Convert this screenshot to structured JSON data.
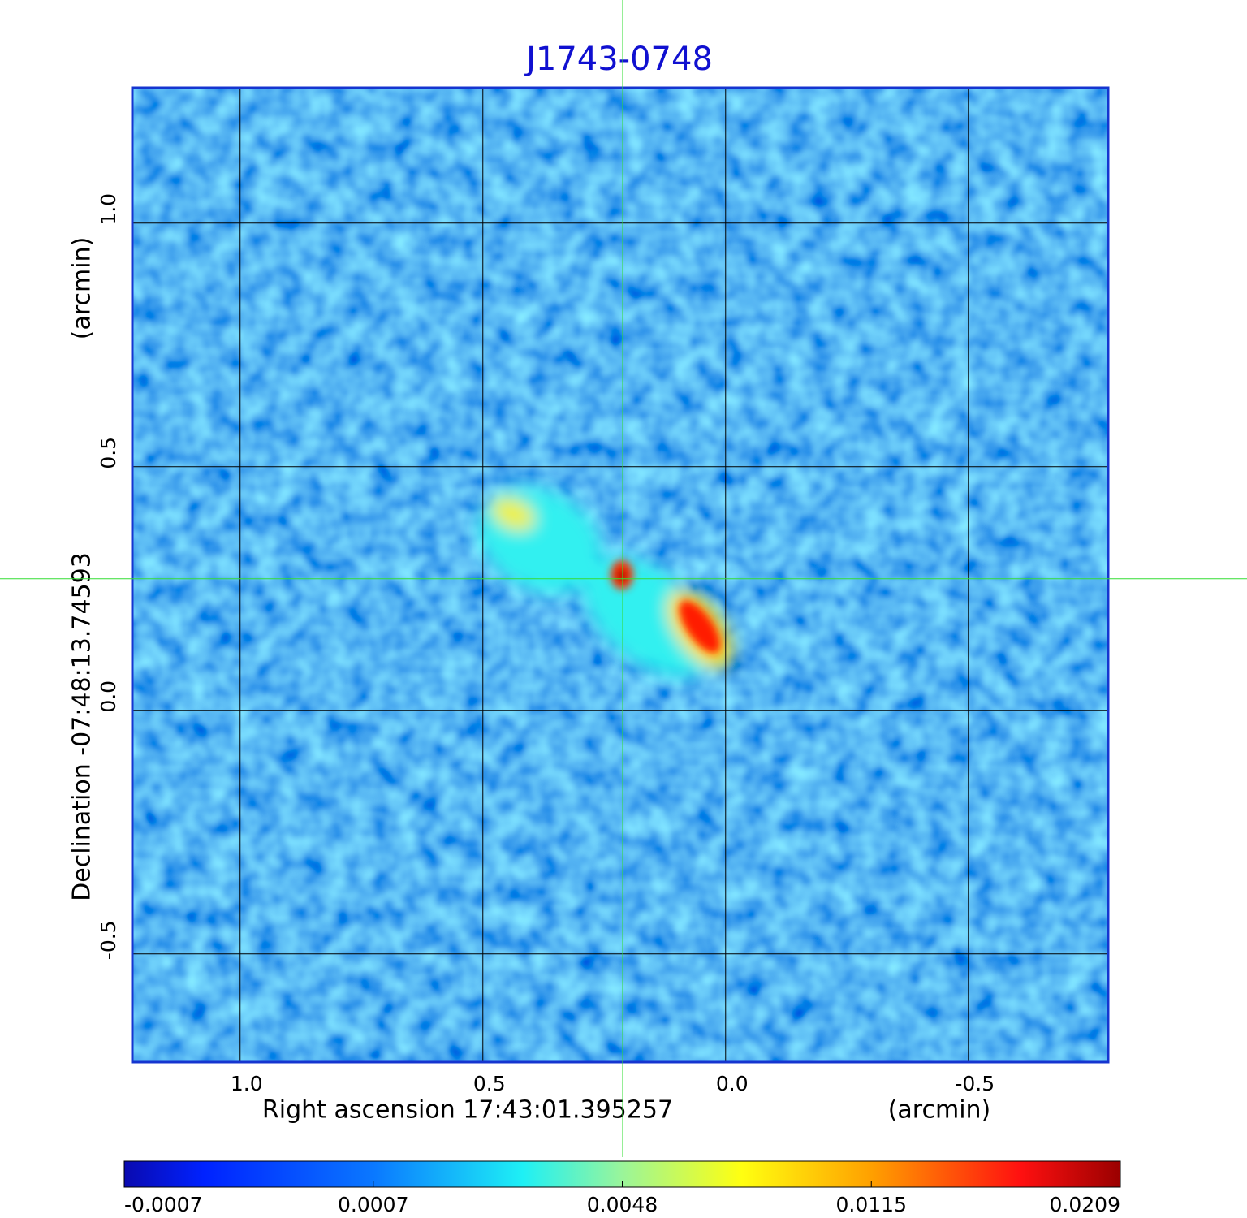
{
  "chart_data": {
    "type": "image",
    "title": "J1743-0748",
    "x_label": "Right ascension  17:43:01.395257",
    "x_unit": "(arcmin)",
    "y_label": "Declination  -07:48:13.74593",
    "y_unit": "(arcmin)",
    "xlim": [
      1.222,
      -0.788
    ],
    "ylim": [
      -0.722,
      1.278
    ],
    "xticks": [
      {
        "value": 1,
        "label": "1.0"
      },
      0.5,
      {
        "value": 0,
        "label": "0.0"
      },
      -0.5
    ],
    "yticks": [
      -0.5,
      {
        "value": 0,
        "label": "0.0"
      },
      0.5,
      {
        "value": 1,
        "label": "1.0"
      }
    ],
    "grid": true,
    "crosshair": {
      "x": 0.212,
      "y": 0.27,
      "color": "#33dd33"
    },
    "colorbar": {
      "ticks": [
        -0.0007,
        0.0007,
        0.0048,
        0.0115,
        0.0209
      ]
    }
  }
}
